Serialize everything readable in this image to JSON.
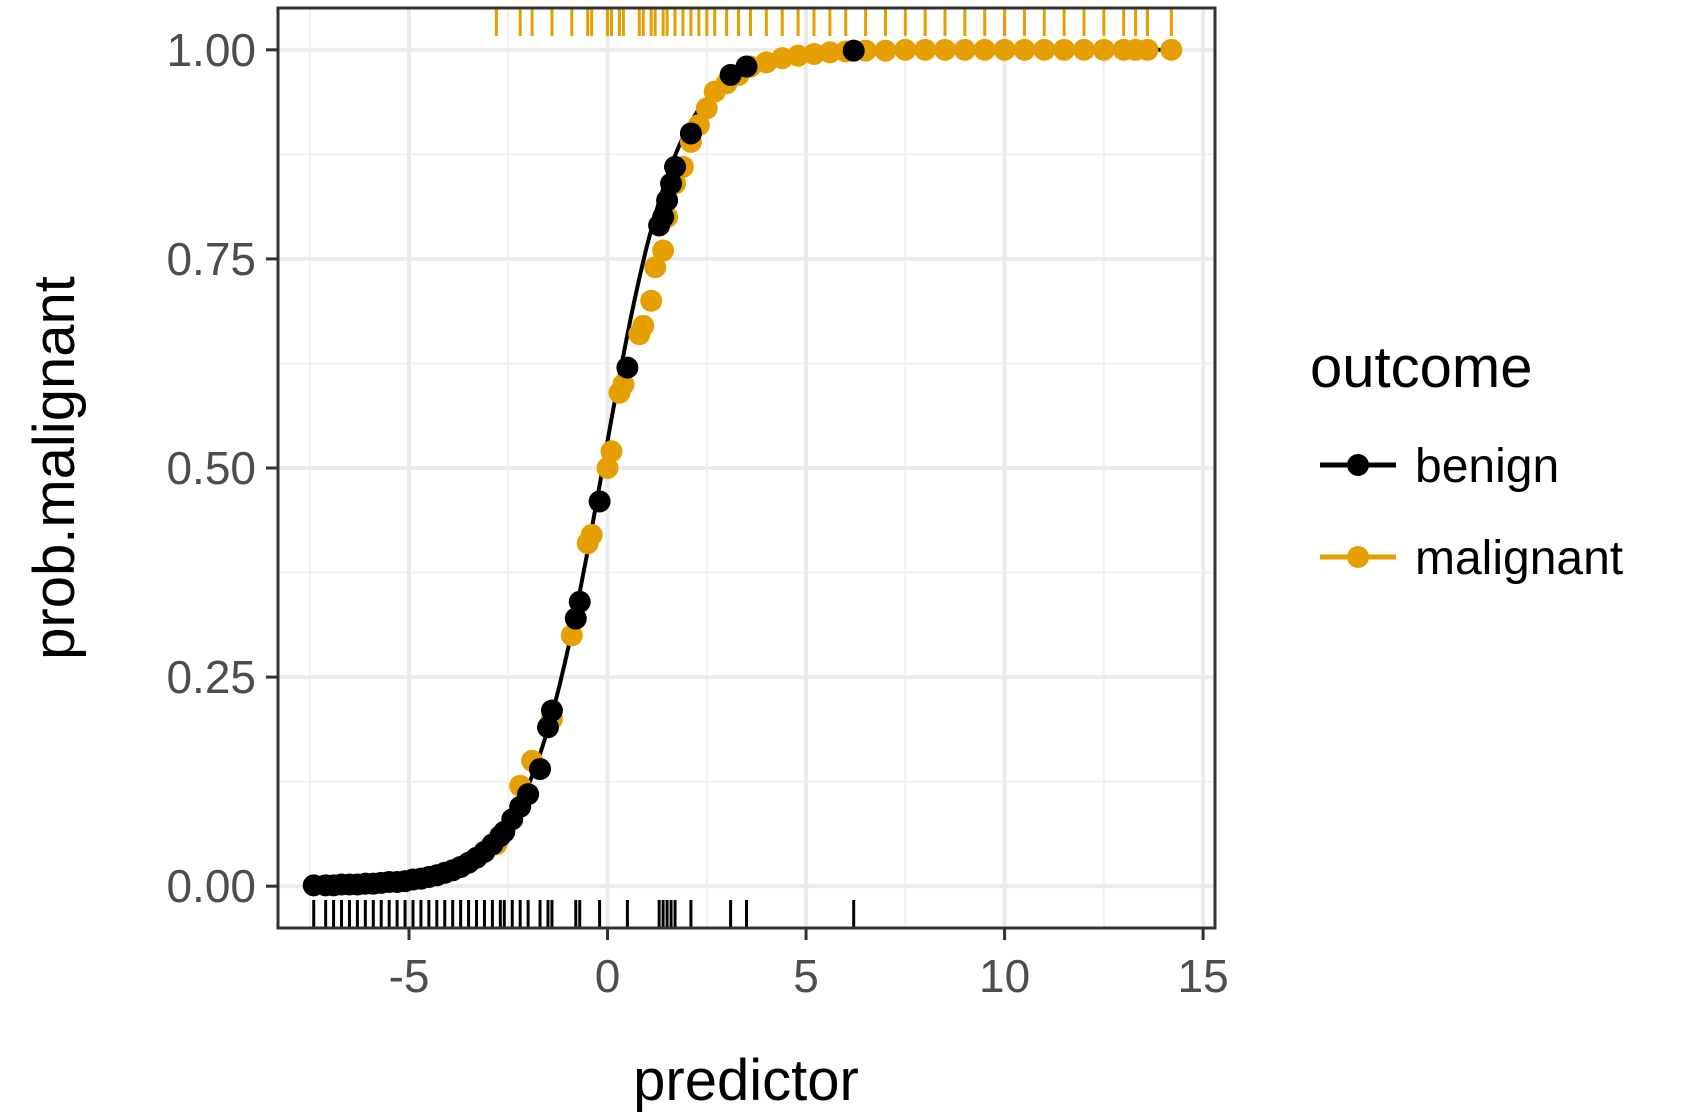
{
  "chart_data": {
    "type": "scatter",
    "title": "",
    "xlabel": "predictor",
    "ylabel": "prob.malignant",
    "xlim": [
      -8.3,
      15.3
    ],
    "ylim": [
      -0.05,
      1.05
    ],
    "x_ticks": [
      -5,
      0,
      5,
      10,
      15
    ],
    "y_ticks": [
      0,
      0.25,
      0.5,
      0.75,
      1
    ],
    "x_tick_labels": [
      "-5",
      "0",
      "5",
      "10",
      "15"
    ],
    "y_tick_labels": [
      "0.00",
      "0.25",
      "0.50",
      "0.75",
      "1.00"
    ],
    "grid": true,
    "curve": {
      "type": "logistic",
      "intercept": 0.13,
      "slope": 1.06
    },
    "legend": {
      "title": "outcome",
      "position": "right",
      "entries": [
        {
          "label": "benign",
          "color": "#000000"
        },
        {
          "label": "malignant",
          "color": "#E69F00"
        }
      ]
    },
    "series": [
      {
        "name": "benign",
        "color": "#000000",
        "x": [
          -7.4,
          -7.1,
          -6.9,
          -6.7,
          -6.5,
          -6.3,
          -6.1,
          -5.9,
          -5.7,
          -5.5,
          -5.3,
          -5.1,
          -4.9,
          -4.7,
          -4.5,
          -4.3,
          -4.1,
          -3.9,
          -3.7,
          -3.5,
          -3.3,
          -3.1,
          -2.9,
          -2.7,
          -2.6,
          -2.4,
          -2.2,
          -2.0,
          -1.7,
          -1.5,
          -1.4,
          -0.8,
          -0.7,
          -0.2,
          0.5,
          1.3,
          1.4,
          1.5,
          1.6,
          1.7,
          2.1,
          3.1,
          3.5,
          6.2
        ],
        "y": [
          0.001,
          0.001,
          0.001,
          0.002,
          0.002,
          0.002,
          0.003,
          0.003,
          0.004,
          0.005,
          0.005,
          0.006,
          0.008,
          0.009,
          0.011,
          0.013,
          0.016,
          0.019,
          0.023,
          0.028,
          0.034,
          0.041,
          0.05,
          0.06,
          0.065,
          0.08,
          0.095,
          0.11,
          0.14,
          0.19,
          0.21,
          0.32,
          0.34,
          0.46,
          0.62,
          0.79,
          0.8,
          0.82,
          0.84,
          0.86,
          0.9,
          0.97,
          0.98,
          0.999
        ]
      },
      {
        "name": "malignant",
        "color": "#E69F00",
        "x": [
          -2.8,
          -2.2,
          -1.9,
          -1.4,
          -0.9,
          -0.5,
          -0.4,
          0.0,
          0.1,
          0.3,
          0.4,
          0.8,
          0.9,
          1.1,
          1.2,
          1.4,
          1.5,
          1.7,
          1.9,
          2.1,
          2.3,
          2.5,
          2.7,
          3.0,
          3.3,
          3.6,
          4.0,
          4.4,
          4.8,
          5.2,
          5.6,
          6.0,
          6.5,
          7.0,
          7.5,
          8.0,
          8.5,
          9.0,
          9.5,
          10.0,
          10.5,
          11.0,
          11.5,
          12.0,
          12.5,
          13.0,
          13.3,
          13.6,
          14.2
        ],
        "y": [
          0.05,
          0.12,
          0.15,
          0.2,
          0.3,
          0.41,
          0.42,
          0.5,
          0.52,
          0.59,
          0.6,
          0.66,
          0.67,
          0.7,
          0.74,
          0.76,
          0.8,
          0.84,
          0.86,
          0.89,
          0.91,
          0.93,
          0.95,
          0.96,
          0.97,
          0.98,
          0.985,
          0.99,
          0.993,
          0.995,
          0.997,
          0.998,
          0.999,
          0.999,
          1.0,
          1.0,
          1.0,
          1.0,
          1.0,
          1.0,
          1.0,
          1.0,
          1.0,
          1.0,
          1.0,
          1.0,
          1.0,
          1.0,
          1.0
        ]
      }
    ]
  }
}
